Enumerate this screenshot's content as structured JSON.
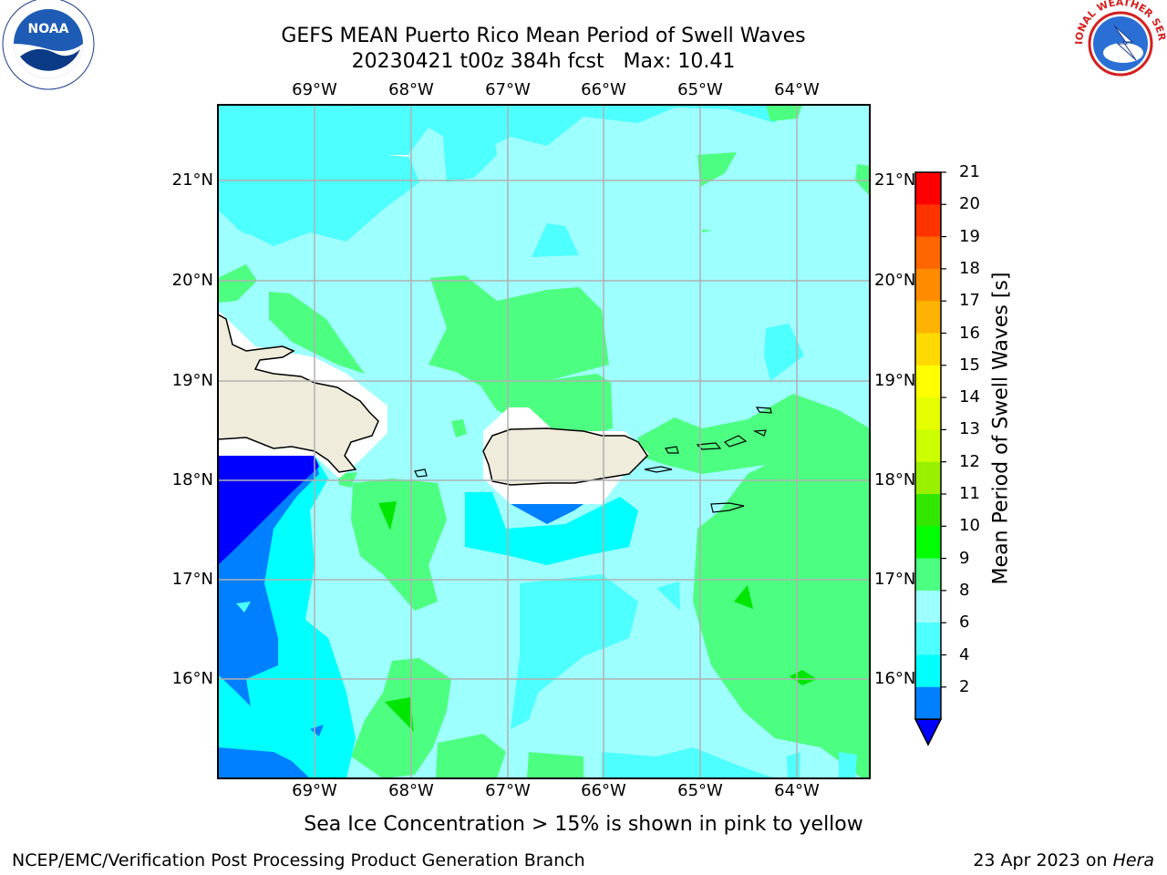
{
  "header": {
    "title_line1": "GEFS MEAN Puerto Rico Mean Period of Swell Waves",
    "title_line2": "20230421 t00z 384h fcst   Max: 10.41"
  },
  "logos": {
    "left": "noara-logo",
    "right": "national-weather-service-logo",
    "right_text": "NATIONAL WEATHER SERVICE"
  },
  "map": {
    "lon_ticks": [
      "69°W",
      "68°W",
      "67°W",
      "66°W",
      "65°W",
      "64°W"
    ],
    "lat_ticks": [
      "21°N",
      "20°N",
      "19°N",
      "18°N",
      "17°N",
      "16°N"
    ],
    "colors": {
      "ocean_light": "#9effff",
      "ocean_mid": "#4dffff",
      "ocean_cyan": "#00ffff",
      "ocean_blue": "#007fff",
      "ocean_deep": "#0000ff",
      "green_light": "#4dff80",
      "green_mid": "#00e600",
      "land": "#efecdc",
      "grid": "#b0b0b0"
    }
  },
  "colorbar": {
    "label": "Mean Period of Swell Waves [s]",
    "ticks": [
      "21",
      "20",
      "19",
      "18",
      "17",
      "16",
      "15",
      "14",
      "13",
      "12",
      "11",
      "10",
      "9",
      "8",
      "6",
      "4",
      "2"
    ],
    "colors": [
      "#ff0000",
      "#ff3300",
      "#ff6600",
      "#ff8c00",
      "#ffb300",
      "#ffd900",
      "#ffff00",
      "#e6ff00",
      "#ccff00",
      "#99f000",
      "#33e600",
      "#00ff00",
      "#4dff80",
      "#9effff",
      "#4dffff",
      "#00ffff",
      "#007fff",
      "#0000ff"
    ]
  },
  "caption": "Sea Ice Concentration > 15% is shown in pink to yellow",
  "footer": {
    "left": "NCEP/EMC/Verification Post Processing Product Generation Branch",
    "date": "23 Apr 2023 on",
    "machine": "Hera"
  }
}
